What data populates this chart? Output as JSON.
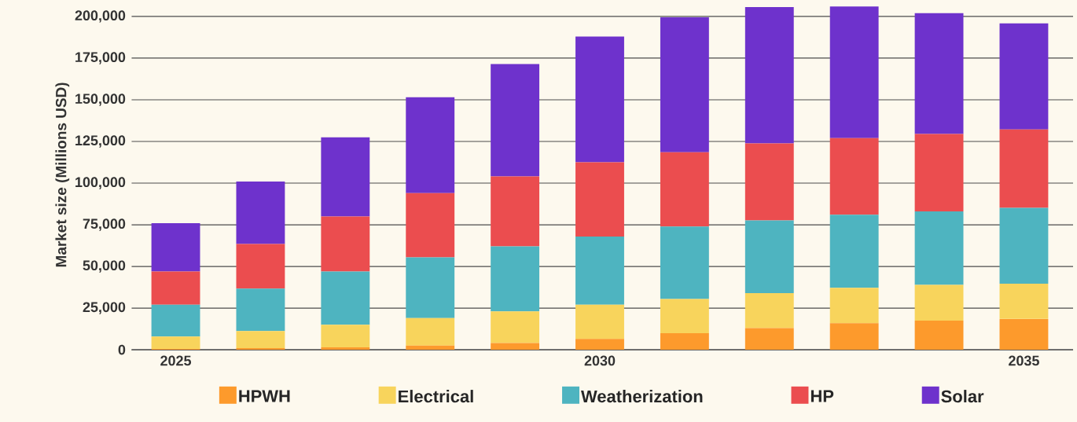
{
  "chart_data": {
    "type": "bar",
    "stacked": true,
    "ylabel": "Market size (Millions USD)",
    "categories": [
      "2025",
      null,
      null,
      null,
      null,
      "2030",
      null,
      null,
      null,
      null,
      "2035"
    ],
    "series": [
      {
        "name": "HPWH",
        "color": "#fd9a2c",
        "values": [
          500,
          1000,
          1500,
          2500,
          4000,
          6500,
          10000,
          13000,
          16000,
          17500,
          18500
        ]
      },
      {
        "name": "Electrical",
        "color": "#f8d45c",
        "values": [
          7500,
          10300,
          13500,
          16500,
          19000,
          20500,
          20500,
          21000,
          21200,
          21500,
          21100
        ]
      },
      {
        "name": "Weatherization",
        "color": "#4eb4c0",
        "values": [
          19000,
          25400,
          32000,
          36500,
          39000,
          41000,
          43500,
          43600,
          43800,
          44000,
          45600
        ]
      },
      {
        "name": "HP",
        "color": "#eb4d4f",
        "values": [
          20000,
          26800,
          33000,
          38500,
          42000,
          44500,
          44500,
          46200,
          46000,
          46500,
          47000
        ]
      },
      {
        "name": "Solar",
        "color": "#6e32cc",
        "values": [
          29000,
          37500,
          47500,
          57500,
          67500,
          75500,
          81000,
          81800,
          79000,
          72500,
          63600
        ]
      }
    ],
    "ylim": [
      0,
      210000
    ],
    "yticks": [
      0,
      {
        "value": 25000,
        "label": "25,000"
      },
      {
        "value": 50000,
        "label": "50,000"
      },
      {
        "value": 75000,
        "label": "75,000"
      },
      {
        "value": 100000,
        "label": "100,000"
      },
      {
        "value": 125000,
        "label": "125,000"
      },
      {
        "value": 150000,
        "label": "150,000"
      },
      {
        "value": 175000,
        "label": "175,000"
      },
      {
        "value": 200000,
        "label": "200,000"
      }
    ],
    "grid": "y",
    "legend": "bottom"
  }
}
